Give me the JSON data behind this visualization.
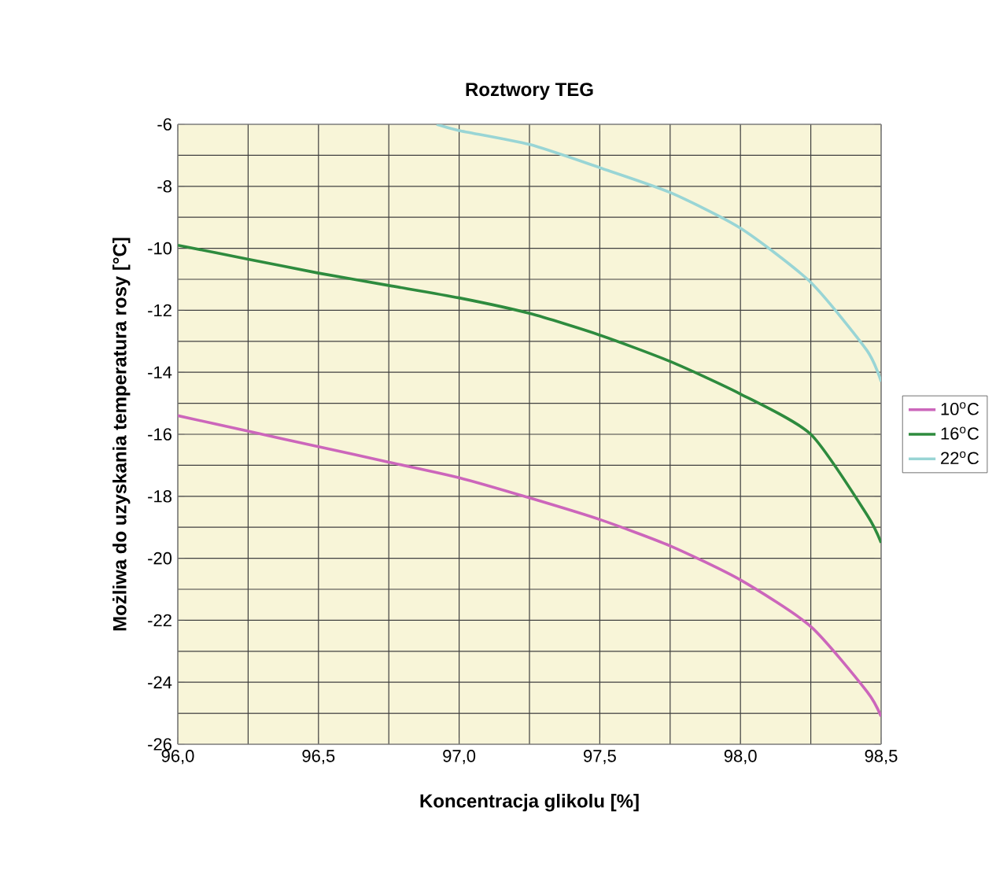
{
  "chart_data": {
    "type": "line",
    "title": "Roztwory TEG",
    "xlabel": "Koncentracja glikolu [%]",
    "ylabel": "Możliwa do uzyskania temperatura rosy [°C]",
    "xlim": [
      96.0,
      98.5
    ],
    "ylim": [
      -26,
      -6
    ],
    "xticks": [
      {
        "value": 96.0,
        "label": "96,0"
      },
      {
        "value": 96.5,
        "label": "96,5"
      },
      {
        "value": 97.0,
        "label": "97,0"
      },
      {
        "value": 97.5,
        "label": "97,5"
      },
      {
        "value": 98.0,
        "label": "98,0"
      },
      {
        "value": 98.5,
        "label": "98,5"
      }
    ],
    "yticks": [
      -26,
      -24,
      -22,
      -20,
      -18,
      -16,
      -14,
      -12,
      -10,
      -8,
      -6
    ],
    "grid": true,
    "legend": "right",
    "marker": "none",
    "line_style": "solid",
    "series": [
      {
        "name": "10$^{o}$C",
        "color": "#cc66bb",
        "x": [
          96.0,
          96.25,
          96.5,
          96.75,
          97.0,
          97.25,
          97.5,
          97.75,
          98.0,
          98.25,
          98.45,
          98.5
        ],
        "values": [
          -15.4,
          -15.9,
          -16.4,
          -16.9,
          -17.4,
          -18.05,
          -18.75,
          -19.6,
          -20.7,
          -22.2,
          -24.3,
          -25.1
        ]
      },
      {
        "name": "16$^{o}$C",
        "color": "#2e8b3e",
        "x": [
          96.0,
          96.25,
          96.5,
          96.75,
          97.0,
          97.25,
          97.5,
          97.75,
          98.0,
          98.25,
          98.45,
          98.5
        ],
        "values": [
          -9.9,
          -10.35,
          -10.8,
          -11.2,
          -11.6,
          -12.1,
          -12.8,
          -13.65,
          -14.7,
          -16.0,
          -18.6,
          -19.5
        ]
      },
      {
        "name": "22$^{o}$C",
        "color": "#99d5d5",
        "x": [
          96.92,
          97.0,
          97.25,
          97.5,
          97.75,
          98.0,
          98.25,
          98.45,
          98.5
        ],
        "values": [
          -6.0,
          -6.2,
          -6.65,
          -7.4,
          -8.2,
          -9.35,
          -11.1,
          -13.3,
          -14.3
        ]
      }
    ]
  }
}
